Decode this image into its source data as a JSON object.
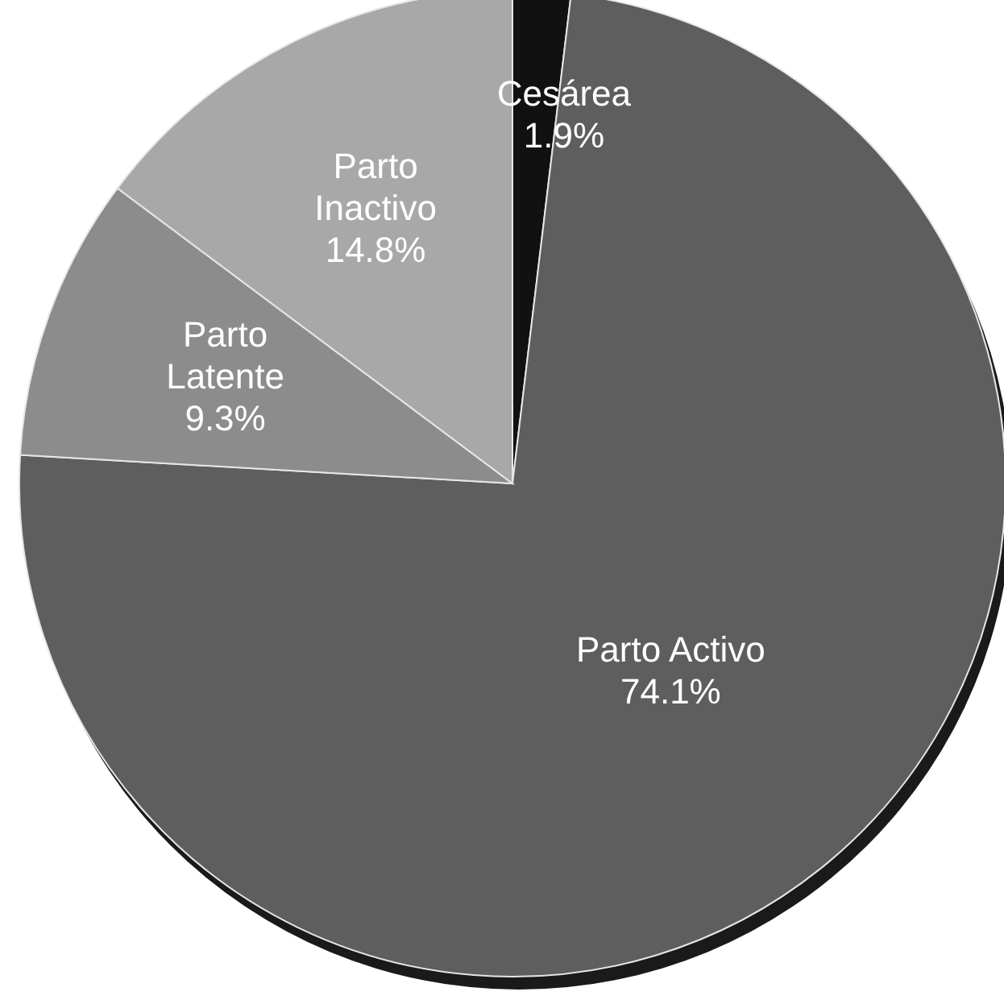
{
  "chart_data": {
    "type": "pie",
    "categories": [
      "Cesárea",
      "Parto Activo",
      "Parto Latente",
      "Parto Inactivo"
    ],
    "values": [
      1.9,
      74.1,
      9.3,
      14.8
    ],
    "colors": [
      "#111111",
      "#5e5e5e",
      "#8c8c8c",
      "#a8a8a8"
    ],
    "value_labels": [
      "1.9%",
      "74.1%",
      "9.3%",
      "14.8%"
    ]
  }
}
